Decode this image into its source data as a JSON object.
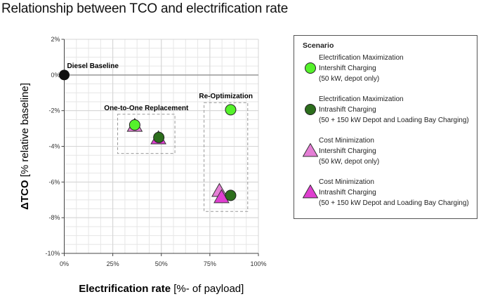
{
  "chart_data": {
    "type": "scatter",
    "title": "Relationship between TCO and electrification rate",
    "xlabel": {
      "bold": "Electrification rate",
      "normal": " [%- of payload]"
    },
    "ylabel": {
      "bold": "ΔTCO",
      "normal": " [% relative baseline]"
    },
    "xlim": [
      0,
      100
    ],
    "ylim": [
      -10,
      2
    ],
    "xticks": [
      0,
      25,
      50,
      75,
      100
    ],
    "xtick_labels": [
      "0%",
      "25%",
      "50%",
      "75%",
      "100%"
    ],
    "yticks": [
      2,
      0,
      -2,
      -4,
      -6,
      -8,
      -10
    ],
    "ytick_labels": [
      "2%",
      "0%",
      "-2%",
      "-4%",
      "-6%",
      "-8%",
      "-10%"
    ],
    "grid": true,
    "legend_position": "right",
    "legend_title": "Scenario",
    "baseline": {
      "label": "Diesel Baseline",
      "x": 0,
      "y": 0,
      "color": "#111111"
    },
    "groups": [
      {
        "label": "One-to-One Replacement",
        "x_range": [
          27.5,
          57
        ],
        "y_range": [
          -4.4,
          -2.2
        ]
      },
      {
        "label": "Re-Optimization",
        "x_range": [
          72,
          94.5
        ],
        "y_range": [
          -7.65,
          -1.55
        ]
      }
    ],
    "series": [
      {
        "name": [
          "Electrification Maximization",
          "Intershift Charging",
          "(50 kW, depot only)"
        ],
        "marker": "circle",
        "color": "#55f22b",
        "points": [
          {
            "x": 36.3,
            "y": -2.8
          },
          {
            "x": 85.7,
            "y": -1.95
          }
        ]
      },
      {
        "name": [
          "Electrification Maximization",
          "Intrashift Charging",
          "(50 + 150 kW Depot and Loading Bay Charging)"
        ],
        "marker": "circle",
        "color": "#2c6e1c",
        "points": [
          {
            "x": 48.7,
            "y": -3.5
          },
          {
            "x": 85.7,
            "y": -6.75
          }
        ]
      },
      {
        "name": [
          "Cost Minimization",
          "Intershift Charging",
          "(50 kW, depot only)"
        ],
        "marker": "triangle",
        "color": "#e57fd6",
        "points": [
          {
            "x": 36.3,
            "y": -2.85
          },
          {
            "x": 79.9,
            "y": -6.5
          }
        ]
      },
      {
        "name": [
          "Cost Minimization",
          "Intrashift Charging",
          "(50 + 150 kW Depot and Loading Bay Charging)"
        ],
        "marker": "triangle",
        "color": "#df3fd0",
        "points": [
          {
            "x": 48.5,
            "y": -3.55
          },
          {
            "x": 81,
            "y": -6.85
          }
        ]
      }
    ]
  }
}
